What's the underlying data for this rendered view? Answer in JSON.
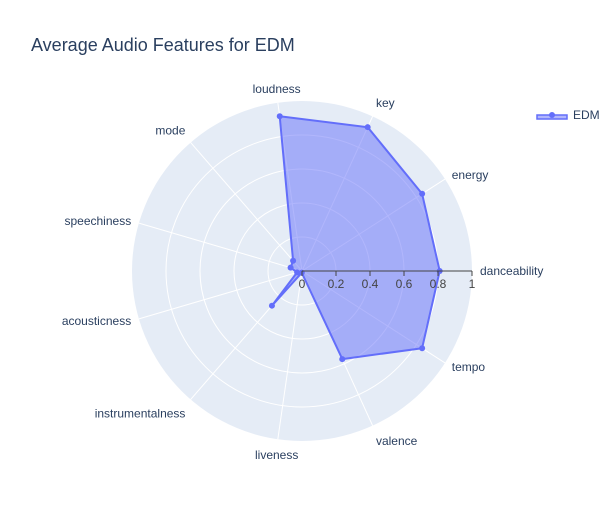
{
  "chart_data": {
    "type": "radar",
    "title": "Average Audio Features for EDM",
    "categories": [
      "danceability",
      "energy",
      "key",
      "loudness",
      "mode",
      "speechiness",
      "acousticness",
      "instrumentalness",
      "liveness",
      "valence",
      "tempo"
    ],
    "series": [
      {
        "name": "EDM",
        "values": [
          0.81,
          0.84,
          0.93,
          0.92,
          0.08,
          0.07,
          0.03,
          0.27,
          0.01,
          0.57,
          0.84
        ],
        "color": "#636efa"
      }
    ],
    "radial_range": [
      0,
      1
    ],
    "radial_ticks": [
      "0",
      "0.2",
      "0.4",
      "0.6",
      "0.8",
      "1"
    ],
    "radial_tick_values": [
      0,
      0.2,
      0.4,
      0.6,
      0.8,
      1
    ],
    "legend_position": "top-right",
    "grid": true,
    "colors": {
      "polar_background": "#e5ecf6",
      "grid": "#ffffff",
      "text": "#2a3f5f",
      "series": "#636efa"
    }
  }
}
